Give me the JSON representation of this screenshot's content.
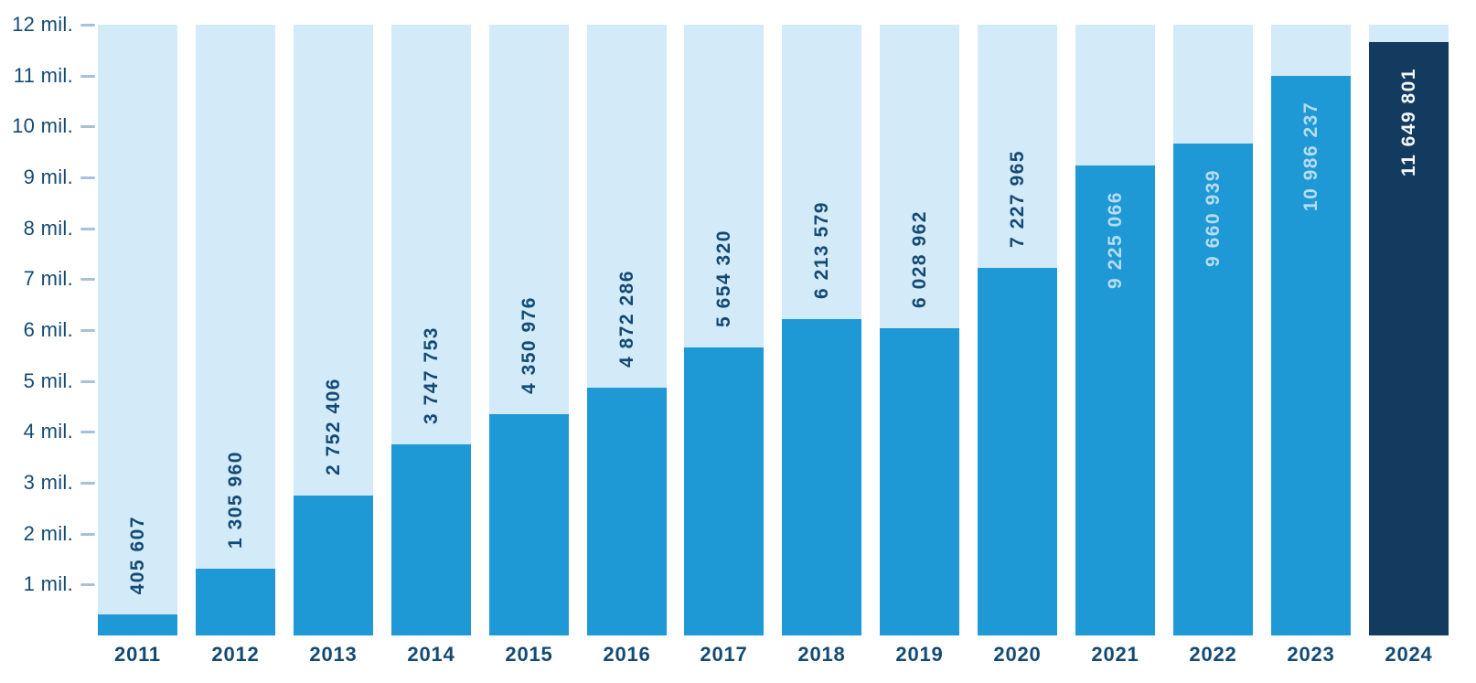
{
  "chart_data": {
    "type": "bar",
    "title": "",
    "xlabel": "",
    "ylabel": "",
    "categories": [
      "2011",
      "2012",
      "2013",
      "2014",
      "2015",
      "2016",
      "2017",
      "2018",
      "2019",
      "2020",
      "2021",
      "2022",
      "2023",
      "2024"
    ],
    "values": [
      405607,
      1305960,
      2752406,
      3747753,
      4350976,
      4872286,
      5654320,
      6213579,
      6028962,
      7227965,
      9225066,
      9660939,
      10986237,
      11649801
    ],
    "value_labels": [
      "405 607",
      "1 305 960",
      "2 752 406",
      "3 747 753",
      "4 350 976",
      "4 872 286",
      "5 654 320",
      "6 213 579",
      "6 028 962",
      "7 227 965",
      "9 225 066",
      "9 660 939",
      "10 986 237",
      "11 649 801"
    ],
    "y_tick_labels": [
      "12 mil.",
      "11 mil.",
      "10 mil.",
      "9 mil.",
      "8 mil.",
      "7 mil.",
      "6 mil.",
      "5 mil.",
      "4 mil.",
      "3 mil.",
      "2 mil.",
      "1 mil."
    ],
    "y_tick_values": [
      12000000,
      11000000,
      10000000,
      9000000,
      8000000,
      7000000,
      6000000,
      5000000,
      4000000,
      3000000,
      2000000,
      1000000
    ],
    "ylim": [
      0,
      12000000
    ],
    "grid": false,
    "legend": false,
    "highlighted_category": "2024",
    "colors": {
      "bar_background": "#d3eaf8",
      "bar_fill": "#1e99d5",
      "bar_highlight": "#133a5f",
      "label_dark": "#134a74",
      "label_on_fill": "#b7dcf3",
      "label_on_highlight": "#f4f8fb",
      "tick_dash": "#a3c2dc",
      "page_background": "#ffffff"
    }
  }
}
